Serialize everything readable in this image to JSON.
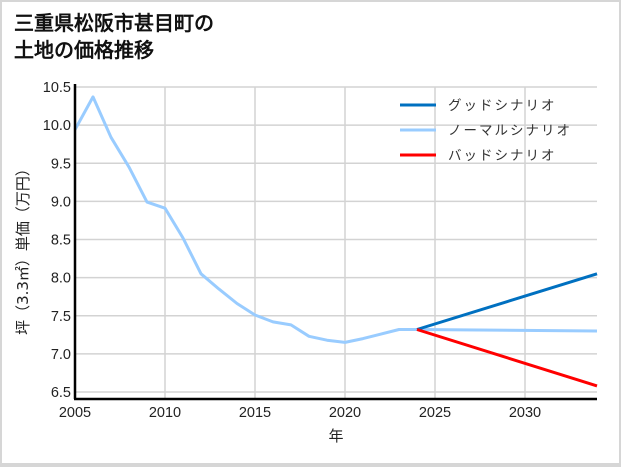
{
  "title": {
    "line1": "三重県松阪市甚目町の",
    "line2": "土地の価格推移"
  },
  "colors": {
    "good": "#0070c0",
    "normal": "#99ccff",
    "bad": "#ff0000",
    "grid": "#d3d3d3",
    "axis": "#000000"
  },
  "legend": [
    {
      "label": "グッドシナリオ",
      "color": "#0070c0"
    },
    {
      "label": "ノーマルシナリオ",
      "color": "#99ccff"
    },
    {
      "label": "バッドシナリオ",
      "color": "#ff0000"
    }
  ],
  "chart_data": {
    "type": "line",
    "title": "三重県松阪市甚目町の土地の価格推移",
    "xlabel": "年",
    "ylabel": "坪（3.3㎡）単価（万円）",
    "xlim": [
      2005,
      2034
    ],
    "ylim": [
      6.4,
      10.5
    ],
    "xticks": [
      2005,
      2010,
      2015,
      2020,
      2025,
      2030
    ],
    "yticks": [
      6.5,
      7.0,
      7.5,
      8.0,
      8.5,
      9.0,
      9.5,
      10.0,
      10.5
    ],
    "ytick_labels": [
      "6.5",
      "7.0",
      "7.5",
      "8.0",
      "8.5",
      "9.0",
      "9.5",
      "10.0",
      "10.5"
    ],
    "grid": true,
    "legend_position": "upper right",
    "series": [
      {
        "name": "ノーマルシナリオ",
        "color": "#99ccff",
        "x": [
          2005,
          2006,
          2007,
          2008,
          2009,
          2010,
          2011,
          2012,
          2013,
          2014,
          2015,
          2016,
          2017,
          2018,
          2019,
          2020,
          2021,
          2022,
          2023,
          2024,
          2034
        ],
        "values": [
          9.94,
          10.37,
          9.84,
          9.45,
          8.99,
          8.91,
          8.52,
          8.05,
          7.85,
          7.66,
          7.51,
          7.42,
          7.38,
          7.23,
          7.18,
          7.15,
          7.2,
          7.26,
          7.32,
          7.32,
          7.3
        ]
      },
      {
        "name": "グッドシナリオ",
        "color": "#0070c0",
        "x": [
          2024,
          2034
        ],
        "values": [
          7.32,
          8.05
        ]
      },
      {
        "name": "バッドシナリオ",
        "color": "#ff0000",
        "x": [
          2024,
          2034
        ],
        "values": [
          7.32,
          6.58
        ]
      }
    ]
  }
}
